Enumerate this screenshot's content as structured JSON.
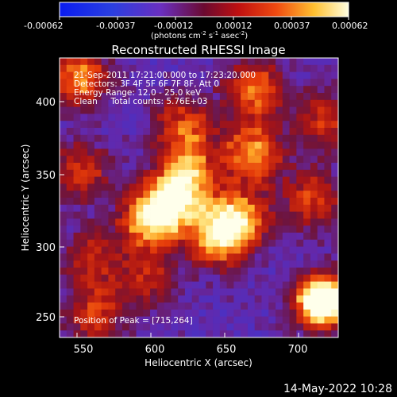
{
  "colorbar": {
    "tick_labels": [
      "-0.00062",
      "-0.00037",
      "-0.00012",
      "0.00012",
      "0.00037",
      "0.00062"
    ],
    "units_prefix": "(photons cm",
    "units_exp1": "-2",
    "units_mid": " s",
    "units_exp2": "-1",
    "units_mid2": " asec",
    "units_exp3": "-2",
    "units_suffix": ")"
  },
  "chart_data": {
    "type": "heatmap",
    "title": "Reconstructed RHESSI Image",
    "xlabel": "Heliocentric X (arcsec)",
    "ylabel": "Heliocentric Y (arcsec)",
    "xlim": [
      538,
      726
    ],
    "ylim": [
      234,
      418
    ],
    "x_ticks": [
      "550",
      "600",
      "650",
      "700"
    ],
    "y_ticks": [
      "250",
      "300",
      "350",
      "400"
    ],
    "clim": [
      -0.00062,
      0.00062
    ],
    "colormap": "blue-purple-red-yellow-white",
    "peak": [
      715,
      264
    ],
    "bright_sources": [
      {
        "x": 598,
        "y": 311,
        "level": 0.55
      },
      {
        "x": 615,
        "y": 324,
        "level": 0.5
      },
      {
        "x": 645,
        "y": 301,
        "level": 0.55
      },
      {
        "x": 660,
        "y": 312,
        "level": 0.45
      },
      {
        "x": 626,
        "y": 342,
        "level": 0.4
      },
      {
        "x": 668,
        "y": 355,
        "level": 0.5
      },
      {
        "x": 622,
        "y": 372,
        "level": 0.4
      },
      {
        "x": 670,
        "y": 397,
        "level": 0.45
      },
      {
        "x": 551,
        "y": 405,
        "level": 0.5
      },
      {
        "x": 552,
        "y": 343,
        "level": 0.35
      },
      {
        "x": 715,
        "y": 258,
        "level": 1.0
      },
      {
        "x": 562,
        "y": 249,
        "level": 0.35
      },
      {
        "x": 560,
        "y": 286,
        "level": 0.3
      },
      {
        "x": 598,
        "y": 272,
        "level": 0.3
      },
      {
        "x": 708,
        "y": 325,
        "level": 0.35
      },
      {
        "x": 717,
        "y": 378,
        "level": 0.35
      }
    ],
    "annotations": [
      "21-Sep-2011 17:21:00.000 to 17:23:20.000",
      "Detectors: 3F 4F 5F 6F 7F 8F, Att 0",
      "Energy Range: 12.0 - 25.0 keV",
      "Clean     Total counts: 5.76E+03",
      "Position of Peak = [715,264]"
    ]
  },
  "footer": {
    "date": "14-May-2022 10:28"
  }
}
